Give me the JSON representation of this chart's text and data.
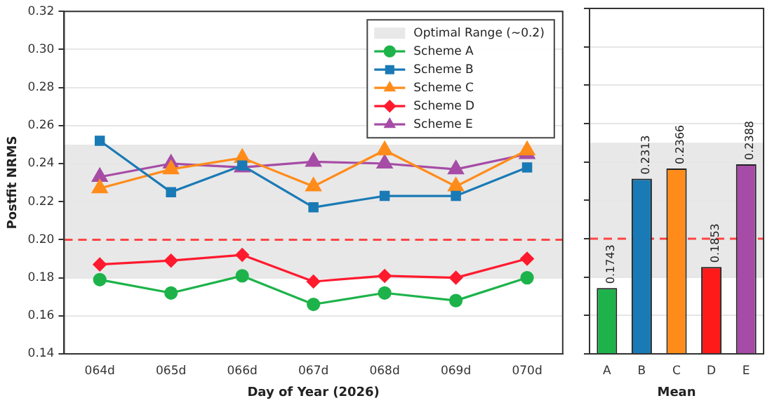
{
  "chart_data": [
    {
      "type": "line",
      "xlabel": "Day of Year (2026)",
      "ylabel": "Postfit NRMS",
      "categories": [
        "064d",
        "065d",
        "066d",
        "067d",
        "068d",
        "069d",
        "070d"
      ],
      "series": [
        {
          "name": "Scheme A",
          "color": "#1db34a",
          "marker": "circle",
          "values": [
            0.179,
            0.172,
            0.181,
            0.166,
            0.172,
            0.168,
            0.18
          ]
        },
        {
          "name": "Scheme B",
          "color": "#1a7ab5",
          "marker": "square",
          "values": [
            0.252,
            0.225,
            0.239,
            0.217,
            0.223,
            0.223,
            0.238
          ]
        },
        {
          "name": "Scheme C",
          "color": "#ff8c1a",
          "marker": "triangle",
          "values": [
            0.227,
            0.237,
            0.243,
            0.228,
            0.247,
            0.228,
            0.247
          ]
        },
        {
          "name": "Scheme D",
          "color": "#ff1a2e",
          "marker": "diamond",
          "values": [
            0.187,
            0.189,
            0.192,
            0.178,
            0.181,
            0.18,
            0.19
          ]
        },
        {
          "name": "Scheme E",
          "color": "#a64ca6",
          "marker": "triangle",
          "values": [
            0.233,
            0.24,
            0.238,
            0.241,
            0.24,
            0.237,
            0.245
          ]
        }
      ],
      "ylim": [
        0.14,
        0.32
      ],
      "yticks": [
        0.14,
        0.16,
        0.18,
        {
          "value": 0.2,
          "label": "0.20"
        },
        0.22,
        0.24,
        0.26,
        0.28,
        {
          "value": 0.3,
          "label": "0.30"
        },
        0.32
      ],
      "bands": [
        {
          "axis": "y",
          "from": 0.18,
          "to": 0.25,
          "label": "Optimal Range (~0.2)",
          "color": "#e8e8e8"
        }
      ],
      "ref_lines": [
        {
          "axis": "y",
          "value": 0.2,
          "color": "#ff4444",
          "line_style": "dashed"
        }
      ],
      "grid": "y",
      "legend": "top right"
    },
    {
      "type": "bar",
      "xlabel": "Mean",
      "categories": [
        "A",
        "B",
        "C",
        "D",
        "E"
      ],
      "values": [
        0.1743,
        0.2313,
        0.2366,
        0.1853,
        0.2388
      ],
      "colors": [
        "#1db34a",
        "#1a7ab5",
        "#ff8c1a",
        "#ff1a1a",
        "#a64ca6"
      ],
      "value_labels": [
        "0.1743",
        "0.2313",
        "0.2366",
        "0.1853",
        "0.2388"
      ],
      "ylim": [
        0.14,
        0.32
      ],
      "yticks": [
        0.14,
        0.16,
        0.18,
        0.2,
        0.22,
        0.24,
        0.26,
        0.28,
        0.3,
        0.32
      ],
      "bands": [
        {
          "axis": "y",
          "from": 0.18,
          "to": 0.25,
          "color": "#e8e8e8"
        }
      ],
      "ref_lines": [
        {
          "axis": "y",
          "value": 0.2,
          "color": "#ff4444",
          "line_style": "dashed"
        }
      ],
      "grid": "y",
      "tick_labels": "x"
    }
  ]
}
